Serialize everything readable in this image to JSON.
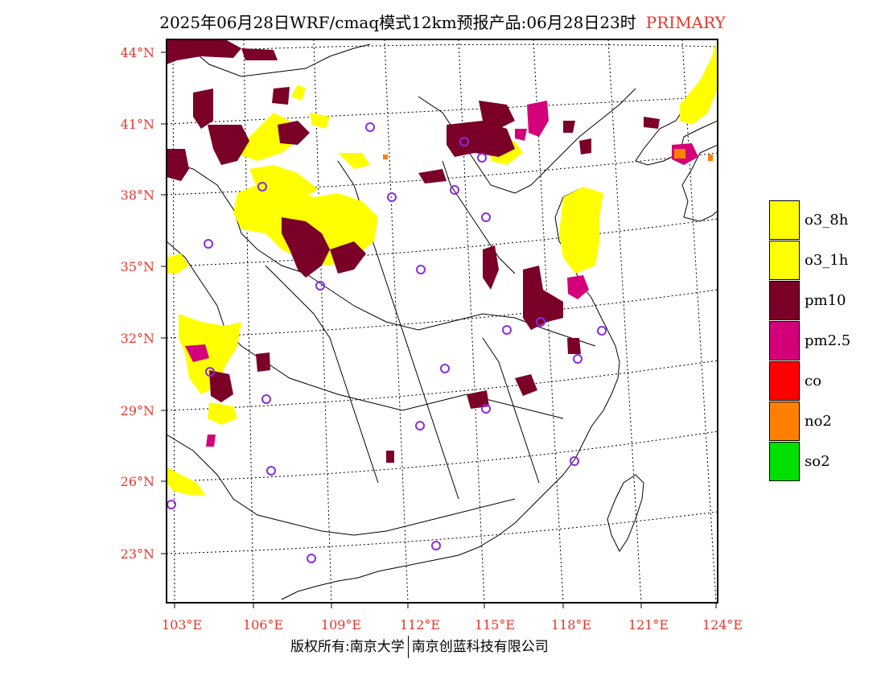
{
  "title": {
    "main": "2025年06月28日WRF/cmaq模式12km预报产品:06月28日23时",
    "tag": "PRIMARY"
  },
  "map": {
    "lat_labels": [
      "44°N",
      "41°N",
      "38°N",
      "35°N",
      "32°N",
      "29°N",
      "26°N",
      "23°N"
    ],
    "lon_labels": [
      "103°E",
      "106°E",
      "109°E",
      "112°E",
      "115°E",
      "118°E",
      "121°E",
      "124°E"
    ],
    "colors": {
      "o3_8h": "#ffff00",
      "o3_1h": "#ffff00",
      "pm10": "#7a0028",
      "pm25": "#d4007a",
      "co": "#ff0000",
      "no2": "#ff8000",
      "so2": "#00e000",
      "station": "#8a2be2",
      "label": "#e8362b"
    }
  },
  "legend": {
    "items": [
      {
        "label": "o3_8h",
        "color": "#ffff00"
      },
      {
        "label": "o3_1h",
        "color": "#ffff00"
      },
      {
        "label": "pm10",
        "color": "#7a0028"
      },
      {
        "label": "pm2.5",
        "color": "#d4007a"
      },
      {
        "label": "co",
        "color": "#ff0000"
      },
      {
        "label": "no2",
        "color": "#ff8000"
      },
      {
        "label": "so2",
        "color": "#00e000"
      }
    ]
  },
  "footer": {
    "left": "版权所有:南京大学",
    "right": "南京创蓝科技有限公司"
  }
}
